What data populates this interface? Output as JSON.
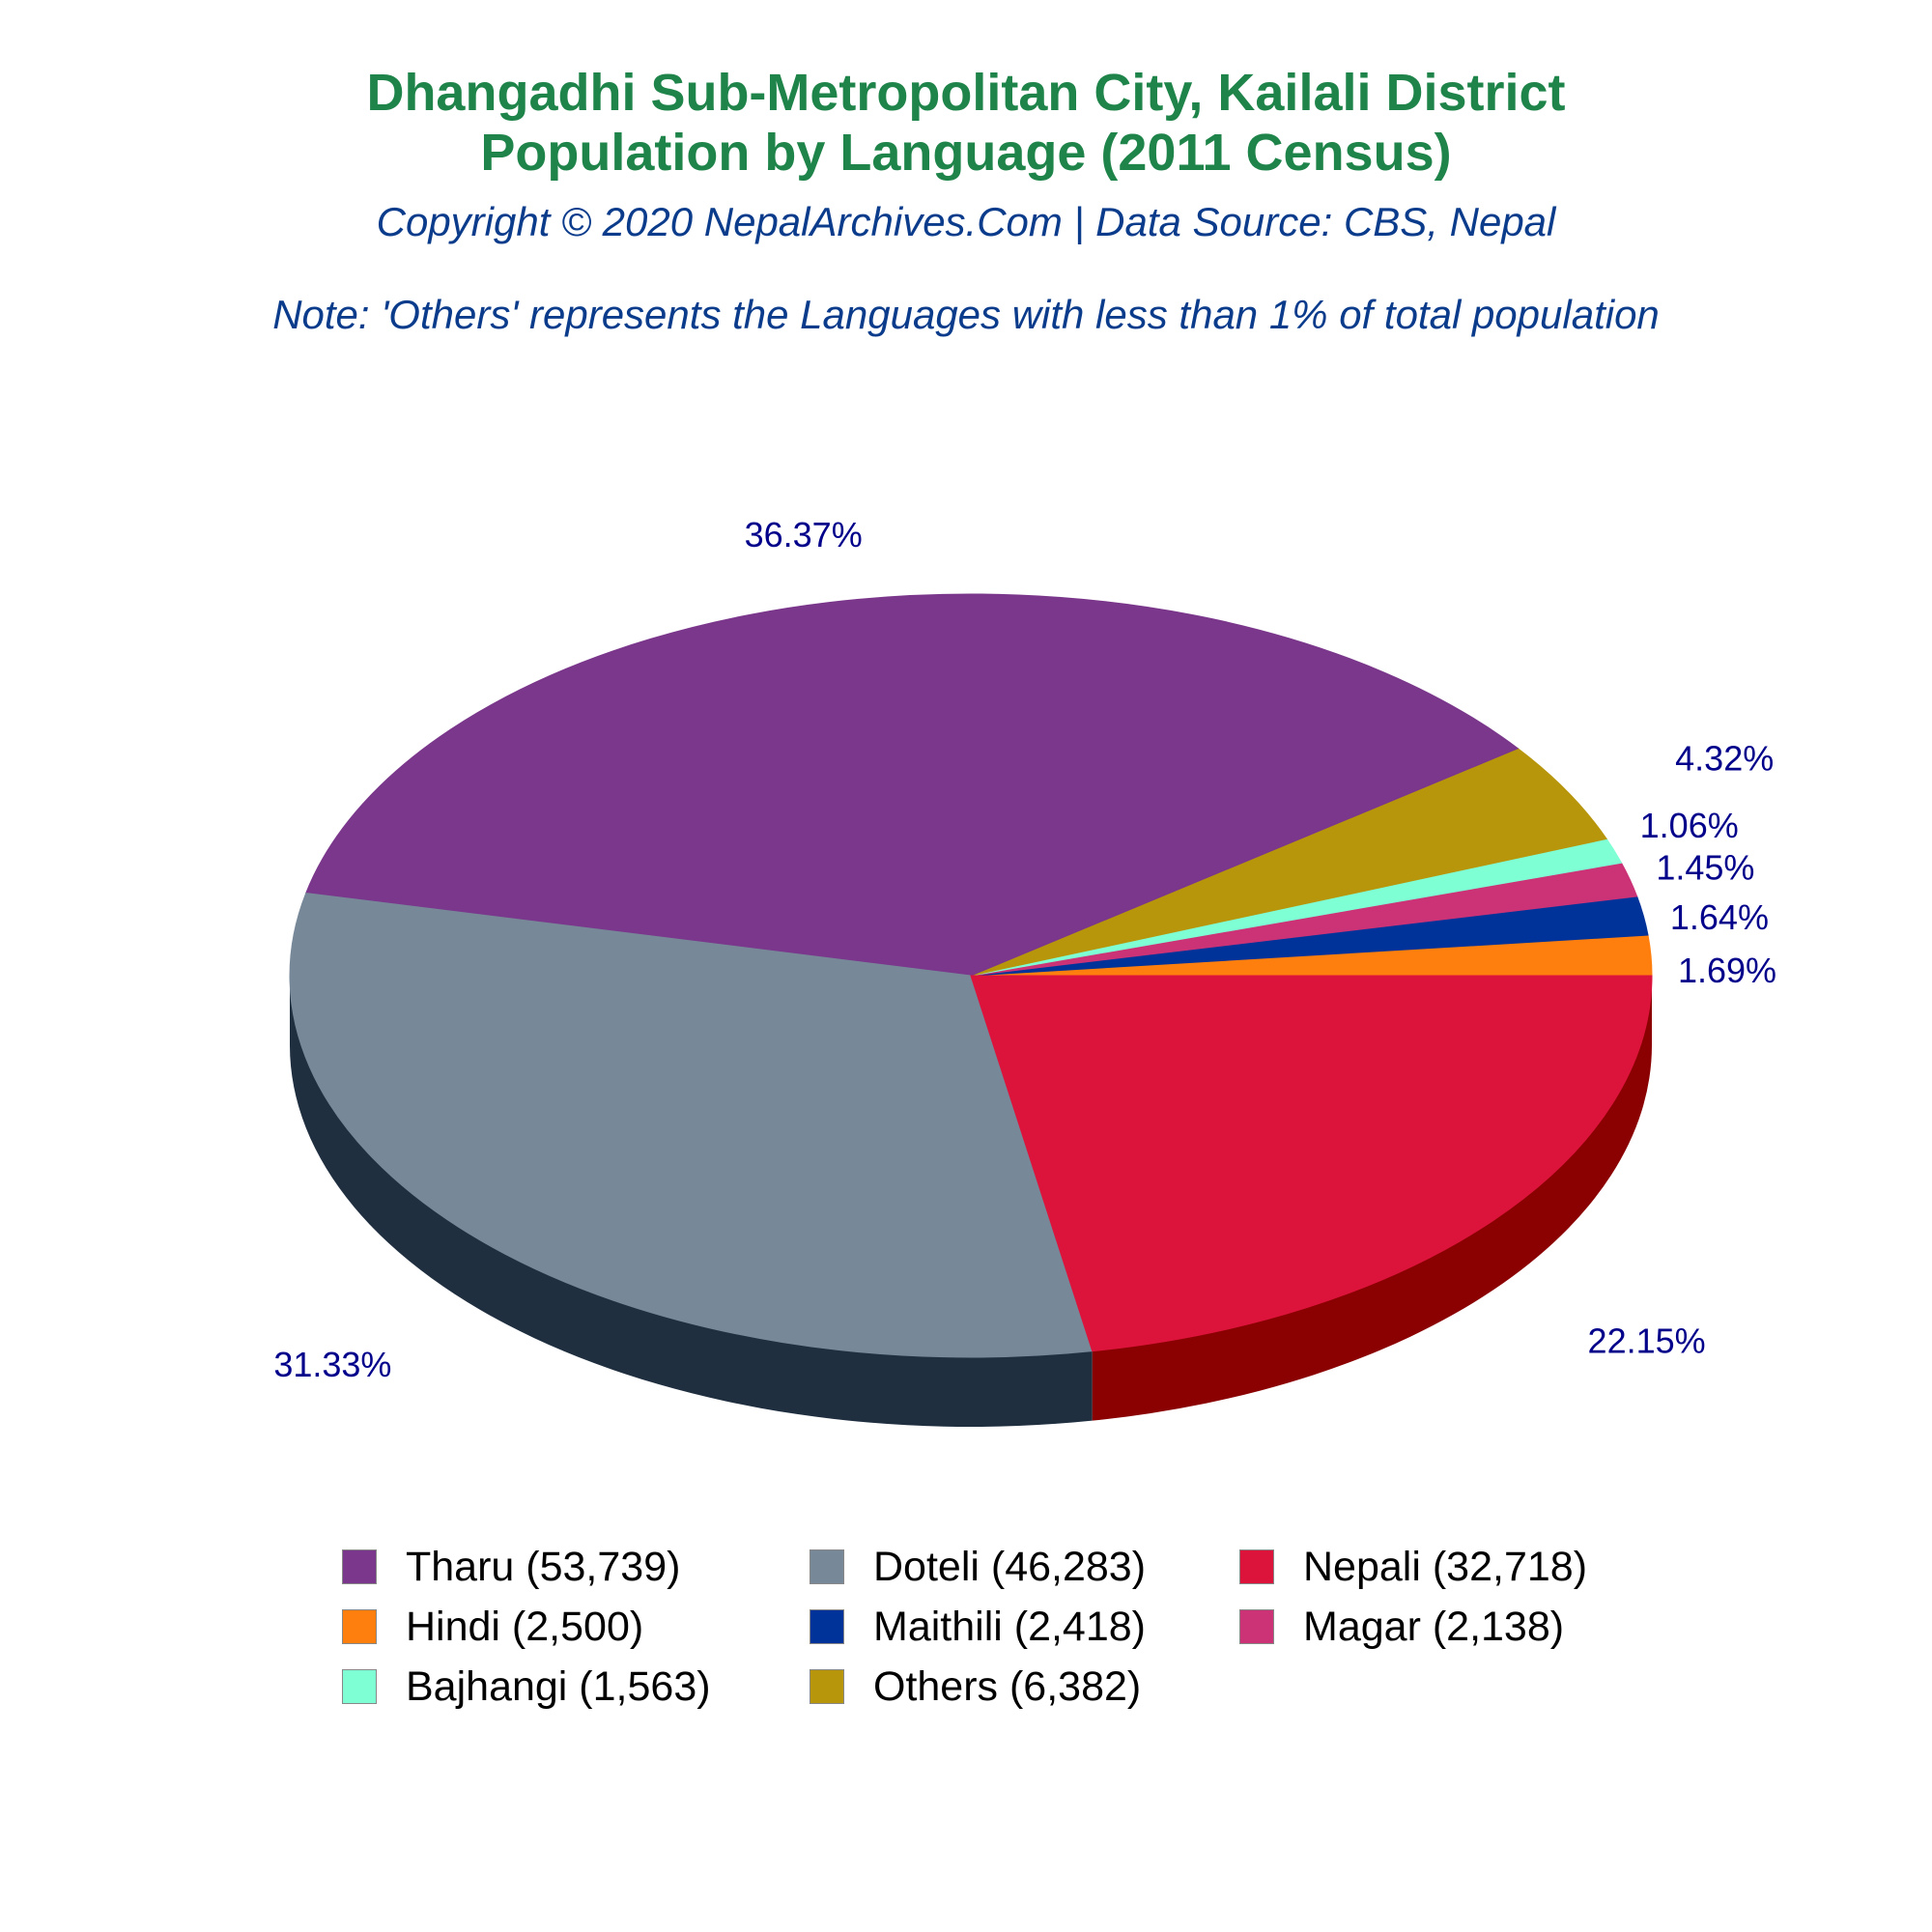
{
  "title_line1": "Dhangadhi Sub-Metropolitan City, Kailali District",
  "title_line2": "Population by Language (2011 Census)",
  "subtitle": "Copyright © 2020 NepalArchives.Com | Data Source: CBS, Nepal",
  "note": "Note: 'Others' represents the Languages with less than 1% of total population",
  "colors": {
    "title": "#1e8449",
    "subtitle": "#0b3c8c",
    "slice_label": "#00008b"
  },
  "chart_data": {
    "type": "pie",
    "style": "3d",
    "start": "east, counter-clockwise",
    "legend_position": "bottom",
    "slices": [
      {
        "label": "Hindi (2,500)",
        "value": 2500,
        "percent_label": "1.69%",
        "color": "#ff7f0e",
        "side_color": "#c25e08"
      },
      {
        "label": "Maithili (2,418)",
        "value": 2418,
        "percent_label": "1.64%",
        "color": "#003399",
        "side_color": "#001f5c"
      },
      {
        "label": "Magar (2,138)",
        "value": 2138,
        "percent_label": "1.45%",
        "color": "#cc3377",
        "side_color": "#7a1f47"
      },
      {
        "label": "Bajhangi (1,563)",
        "value": 1563,
        "percent_label": "1.06%",
        "color": "#7fffd4",
        "side_color": "#3fae8c"
      },
      {
        "label": "Others (6,382)",
        "value": 6382,
        "percent_label": "4.32%",
        "color": "#b8960c",
        "side_color": "#7a6307"
      },
      {
        "label": "Tharu (53,739)",
        "value": 53739,
        "percent_label": "36.37%",
        "color": "#7a378b",
        "side_color": "#4a1f56"
      },
      {
        "label": "Doteli (46,283)",
        "value": 46283,
        "percent_label": "31.33%",
        "color": "#778899",
        "side_color": "#1f2f40"
      },
      {
        "label": "Nepali (32,718)",
        "value": 32718,
        "percent_label": "22.15%",
        "color": "#dc143c",
        "side_color": "#8b0000"
      }
    ],
    "legend_order": [
      "Tharu (53,739)",
      "Doteli (46,283)",
      "Nepali (32,718)",
      "Hindi (2,500)",
      "Maithili (2,418)",
      "Magar (2,138)",
      "Bajhangi (1,563)",
      "Others (6,382)"
    ]
  }
}
